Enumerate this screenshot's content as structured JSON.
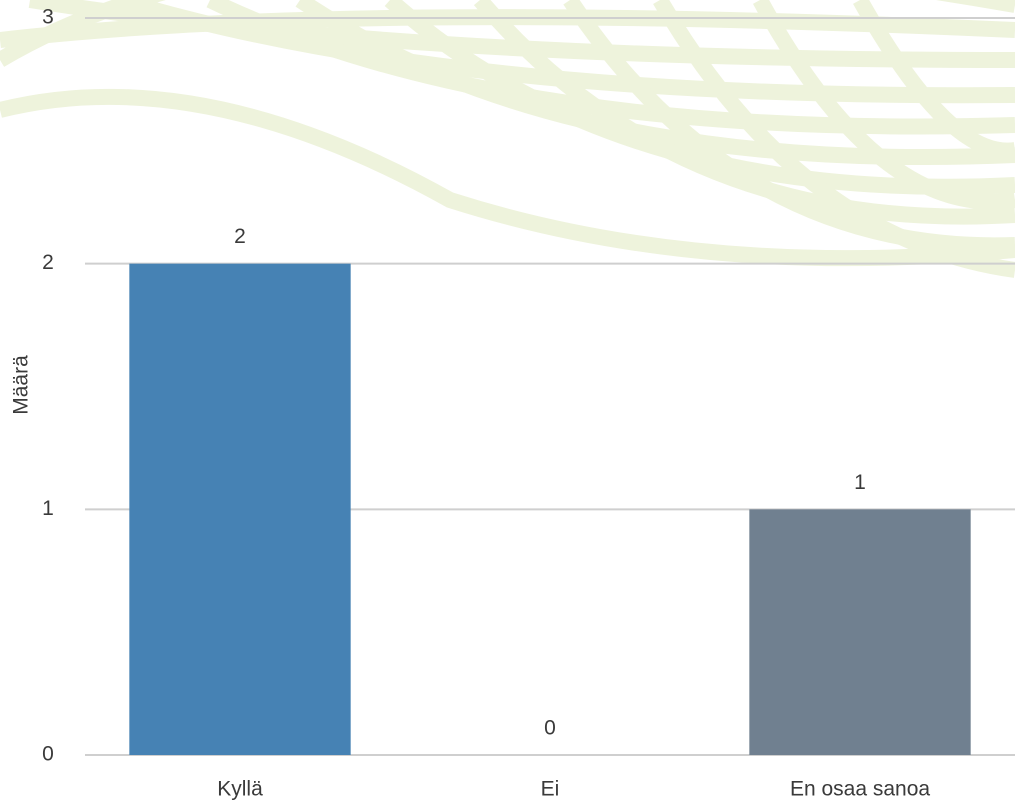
{
  "chart_data": {
    "type": "bar",
    "y_label": "Määrä",
    "categories": [
      "Kyllä",
      "Ei",
      "En osaa sanoa"
    ],
    "values": [
      2,
      0,
      1
    ],
    "colors": [
      "#4682b4",
      "#4682b4",
      "#708090"
    ],
    "ylim": [
      0,
      3
    ],
    "yticks": [
      0,
      1,
      2,
      3
    ],
    "grid": true
  }
}
